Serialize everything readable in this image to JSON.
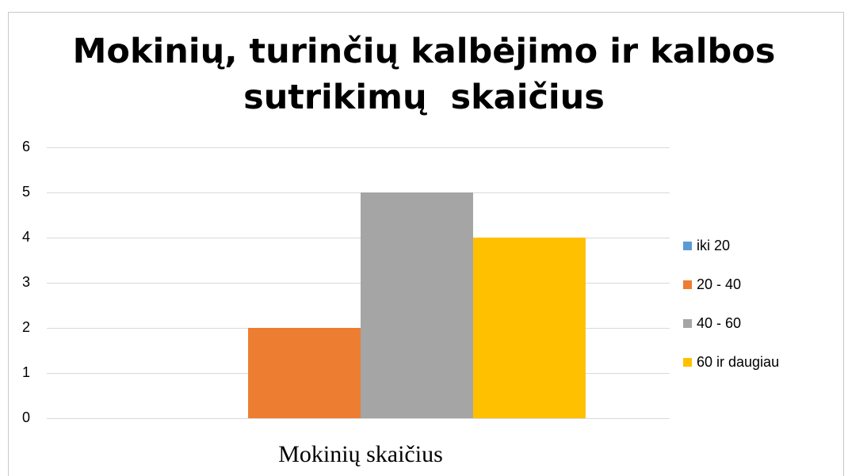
{
  "chart_data": {
    "type": "bar",
    "title": [
      "Mokinių, turinčių kalbėjimo ir kalbos",
      "sutrikimų  skaičius"
    ],
    "categories": [
      "Mokinių skaičius"
    ],
    "series": [
      {
        "name": "iki 20",
        "color": "#5b9bd5",
        "values": [
          0
        ]
      },
      {
        "name": "20 - 40",
        "color": "#ed7d31",
        "values": [
          2
        ]
      },
      {
        "name": "40 - 60",
        "color": "#a5a5a5",
        "values": [
          5
        ]
      },
      {
        "name": "60 ir daugiau",
        "color": "#ffc000",
        "values": [
          4
        ]
      }
    ],
    "ylim": [
      0,
      6
    ],
    "yticks": [
      0,
      1,
      2,
      3,
      4,
      5,
      6
    ],
    "grid": true,
    "legend": "right"
  }
}
